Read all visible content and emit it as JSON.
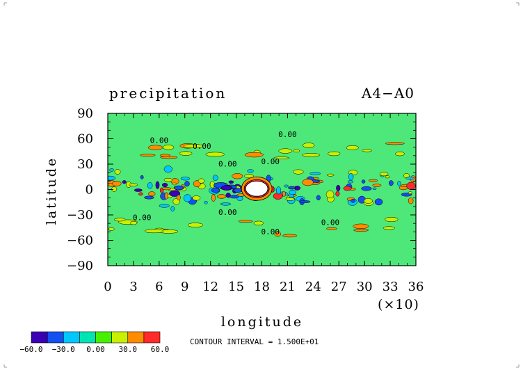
{
  "chart_data": {
    "type": "heatmap",
    "title_left": "precipitation",
    "title_right": "A4−A0",
    "xlabel": "longitude",
    "xscale_note": "(×10)",
    "ylabel": "latitude",
    "xlim": [
      0,
      36
    ],
    "ylim": [
      -90,
      90
    ],
    "x_ticks": [
      "0",
      "3",
      "6",
      "9",
      "12",
      "15",
      "18",
      "21",
      "24",
      "27",
      "30",
      "33",
      "36"
    ],
    "y_ticks": [
      "90",
      "60",
      "30",
      "0",
      "−30",
      "−60",
      "−90"
    ],
    "contour_labels": [
      "0.00",
      "0.00",
      "0.00",
      "0.00",
      "0.00",
      "0.00",
      "0.00",
      "0.00",
      "0.00"
    ],
    "contour_interval_text": "CONTOUR INTERVAL = 1.500E+01",
    "colorbar": {
      "colors": [
        "#3a00b4",
        "#1450f0",
        "#00c8ff",
        "#00e4b4",
        "#46f000",
        "#c8f000",
        "#ff8c00",
        "#ff2a2a"
      ],
      "tick_labels": [
        "−60.0",
        "−30.0",
        "0.00",
        "30.0",
        "60.0"
      ],
      "bounds": [
        -60,
        -45,
        -30,
        -15,
        0,
        15,
        30,
        45,
        60
      ]
    },
    "background_level_color": "#4de879",
    "grid": false
  }
}
